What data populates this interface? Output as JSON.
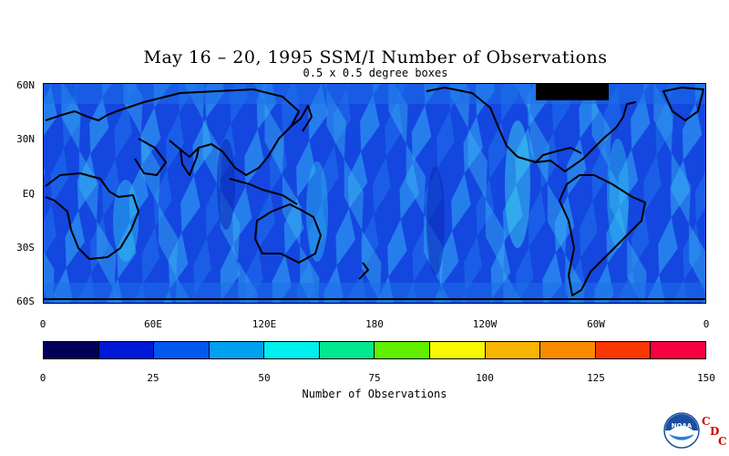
{
  "title": "May 16 – 20, 1995 SSM/I Number of Observations",
  "subtitle": "0.5 x 0.5 degree boxes",
  "map": {
    "lat_labels": [
      "60N",
      "30N",
      "EQ",
      "30S",
      "60S"
    ],
    "lon_labels": [
      "0",
      "60E",
      "120E",
      "180",
      "120W",
      "60W",
      "0"
    ],
    "lat_range": [
      -60,
      60
    ],
    "lon_range": [
      0,
      360
    ],
    "background_color": "#1446e0",
    "coastline_color": "#000000"
  },
  "colorbar": {
    "title": "Number of Observations",
    "tick_labels": [
      "0",
      "25",
      "50",
      "75",
      "100",
      "125",
      "150"
    ],
    "colors": [
      "#00005a",
      "#0018d8",
      "#0058f0",
      "#00a0f0",
      "#00f0f0",
      "#00e890",
      "#60f000",
      "#f8f800",
      "#f8b400",
      "#f88c00",
      "#f83800",
      "#f80040"
    ]
  },
  "logo": {
    "name": "NOAA",
    "c1": "C",
    "c2": "D",
    "c3": "C"
  }
}
